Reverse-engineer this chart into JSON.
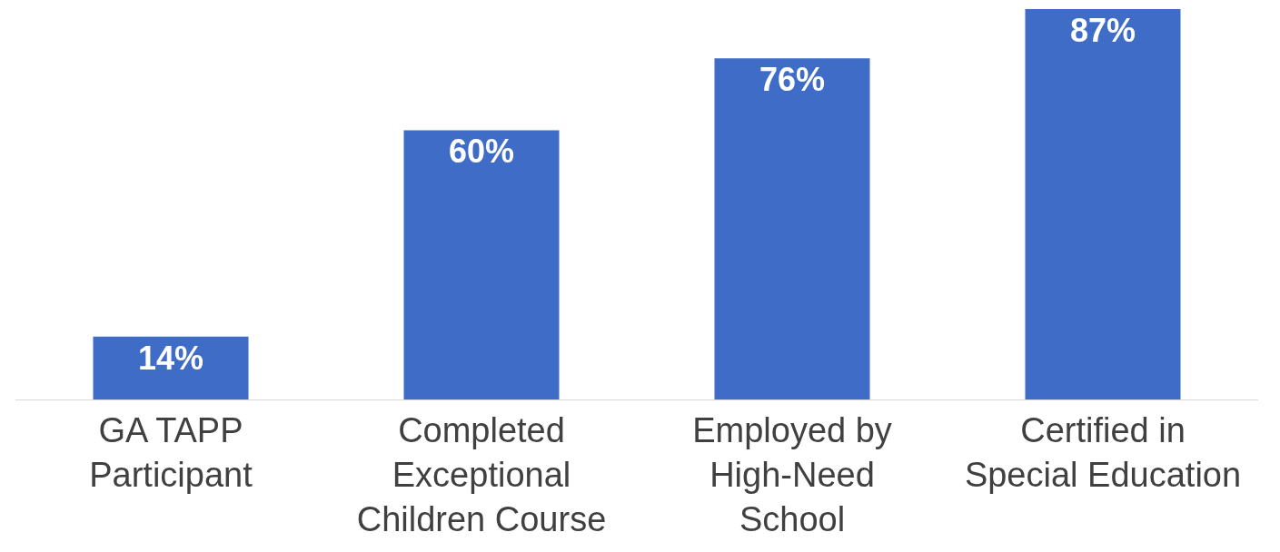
{
  "chart_data": {
    "type": "bar",
    "categories": [
      "GA TAPP\nParticipant",
      "Completed\nExceptional\nChildren Course",
      "Employed by\nHigh-Need\nSchool",
      "Certified in\nSpecial Education"
    ],
    "values": [
      14,
      60,
      76,
      87
    ],
    "value_labels": [
      "14%",
      "60%",
      "76%",
      "87%"
    ],
    "color": "#3f6cc6",
    "ylim": [
      0,
      87
    ],
    "tick_labels": "x",
    "legend": false
  }
}
